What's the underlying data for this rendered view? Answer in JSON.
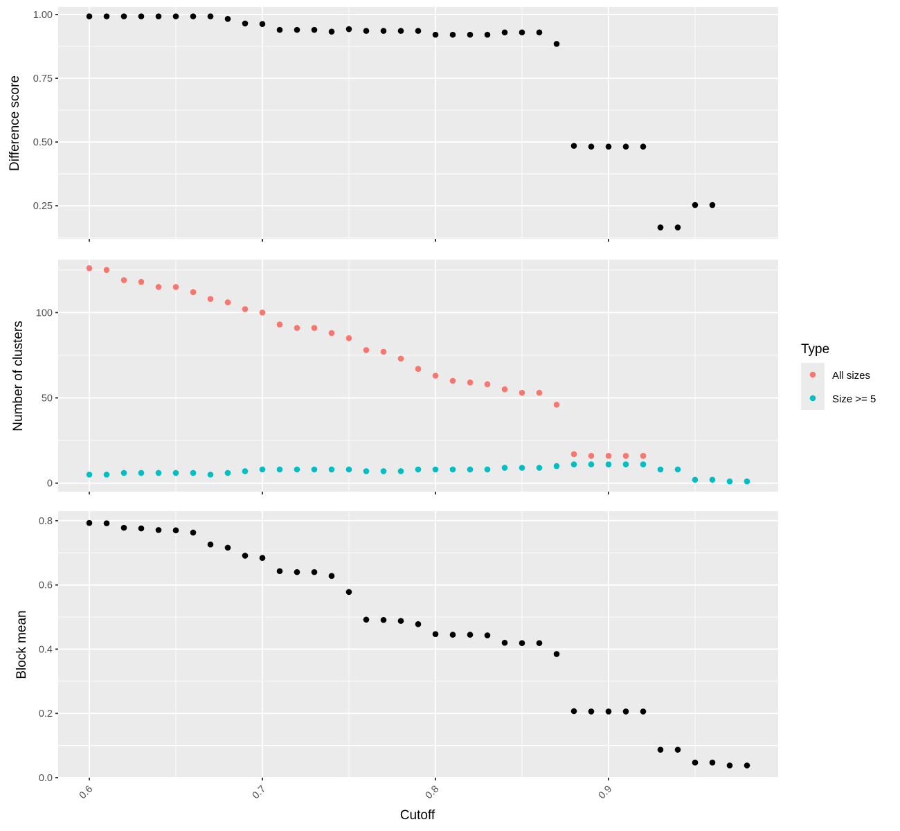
{
  "chart_data": [
    {
      "type": "scatter",
      "panel": "top",
      "ylabel": "Difference score",
      "xlim": [
        0.582,
        0.998
      ],
      "ylim": [
        0.12,
        1.03
      ],
      "y_ticks": [
        0.25,
        0.5,
        0.75,
        1.0
      ],
      "y_tick_labels": [
        "0.25",
        "0.50",
        "0.75",
        "1.00"
      ],
      "grid": true,
      "series": [
        {
          "color": "#000000",
          "x": [
            0.6,
            0.61,
            0.62,
            0.63,
            0.64,
            0.65,
            0.66,
            0.67,
            0.68,
            0.69,
            0.7,
            0.71,
            0.72,
            0.73,
            0.74,
            0.75,
            0.76,
            0.77,
            0.78,
            0.79,
            0.8,
            0.81,
            0.82,
            0.83,
            0.84,
            0.85,
            0.86,
            0.87,
            0.88,
            0.89,
            0.9,
            0.91,
            0.92,
            0.93,
            0.94,
            0.95,
            0.96
          ],
          "y": [
            0.993,
            0.993,
            0.993,
            0.993,
            0.993,
            0.993,
            0.993,
            0.993,
            0.983,
            0.965,
            0.963,
            0.94,
            0.94,
            0.94,
            0.933,
            0.943,
            0.936,
            0.936,
            0.936,
            0.936,
            0.921,
            0.921,
            0.921,
            0.921,
            0.93,
            0.93,
            0.93,
            0.885,
            0.485,
            0.482,
            0.482,
            0.482,
            0.482,
            0.165,
            0.165,
            0.253,
            0.253
          ]
        }
      ]
    },
    {
      "type": "scatter",
      "panel": "middle",
      "ylabel": "Number of clusters",
      "xlim": [
        0.582,
        0.998
      ],
      "ylim": [
        -5,
        131
      ],
      "y_ticks": [
        0,
        50,
        100
      ],
      "y_tick_labels": [
        "0",
        "50",
        "100"
      ],
      "grid": true,
      "legend": {
        "title": "Type",
        "position": "right",
        "entries": [
          {
            "label": "All sizes",
            "color": "#F8766D"
          },
          {
            "label": "Size >= 5",
            "color": "#00BFC4"
          }
        ]
      },
      "series": [
        {
          "name": "All sizes",
          "color": "#F8766D",
          "x": [
            0.6,
            0.61,
            0.62,
            0.63,
            0.64,
            0.65,
            0.66,
            0.67,
            0.68,
            0.69,
            0.7,
            0.71,
            0.72,
            0.73,
            0.74,
            0.75,
            0.76,
            0.77,
            0.78,
            0.79,
            0.8,
            0.81,
            0.82,
            0.83,
            0.84,
            0.85,
            0.86,
            0.87,
            0.88,
            0.89,
            0.9,
            0.91,
            0.92
          ],
          "y": [
            126,
            125,
            119,
            118,
            115,
            115,
            112,
            108,
            106,
            102,
            100,
            93,
            91,
            91,
            88,
            85,
            78,
            77,
            73,
            67,
            63,
            60,
            59,
            58,
            55,
            53,
            53,
            46,
            17,
            16,
            16,
            16,
            16
          ]
        },
        {
          "name": "Size >= 5",
          "color": "#00BFC4",
          "x": [
            0.6,
            0.61,
            0.62,
            0.63,
            0.64,
            0.65,
            0.66,
            0.67,
            0.68,
            0.69,
            0.7,
            0.71,
            0.72,
            0.73,
            0.74,
            0.75,
            0.76,
            0.77,
            0.78,
            0.79,
            0.8,
            0.81,
            0.82,
            0.83,
            0.84,
            0.85,
            0.86,
            0.87,
            0.88,
            0.89,
            0.9,
            0.91,
            0.92,
            0.93,
            0.94,
            0.95,
            0.96,
            0.97,
            0.98
          ],
          "y": [
            5,
            5,
            6,
            6,
            6,
            6,
            6,
            5,
            6,
            7,
            8,
            8,
            8,
            8,
            8,
            8,
            7,
            7,
            7,
            8,
            8,
            8,
            8,
            8,
            9,
            9,
            9,
            10,
            11,
            11,
            11,
            11,
            11,
            8,
            8,
            2,
            2,
            1,
            1
          ]
        }
      ]
    },
    {
      "type": "scatter",
      "panel": "bottom",
      "ylabel": "Block mean",
      "xlabel": "Cutoff",
      "xlim": [
        0.582,
        0.998
      ],
      "ylim": [
        0,
        0.83
      ],
      "x_ticks": [
        0.6,
        0.7,
        0.8,
        0.9
      ],
      "x_tick_labels": [
        "0.6",
        "0.7",
        "0.8",
        "0.9"
      ],
      "y_ticks": [
        0.0,
        0.2,
        0.4,
        0.6,
        0.8
      ],
      "y_tick_labels": [
        "0.0",
        "0.2",
        "0.4",
        "0.6",
        "0.8"
      ],
      "grid": true,
      "series": [
        {
          "color": "#000000",
          "x": [
            0.6,
            0.61,
            0.62,
            0.63,
            0.64,
            0.65,
            0.66,
            0.67,
            0.68,
            0.69,
            0.7,
            0.71,
            0.72,
            0.73,
            0.74,
            0.75,
            0.76,
            0.77,
            0.78,
            0.79,
            0.8,
            0.81,
            0.82,
            0.83,
            0.84,
            0.85,
            0.86,
            0.87,
            0.88,
            0.89,
            0.9,
            0.91,
            0.92,
            0.93,
            0.94,
            0.95,
            0.96,
            0.97,
            0.98
          ],
          "y": [
            0.793,
            0.792,
            0.778,
            0.776,
            0.771,
            0.77,
            0.763,
            0.726,
            0.716,
            0.691,
            0.684,
            0.643,
            0.64,
            0.64,
            0.628,
            0.578,
            0.492,
            0.491,
            0.488,
            0.478,
            0.447,
            0.445,
            0.445,
            0.443,
            0.42,
            0.419,
            0.419,
            0.385,
            0.207,
            0.206,
            0.206,
            0.206,
            0.206,
            0.087,
            0.087,
            0.047,
            0.047,
            0.038,
            0.038
          ]
        }
      ]
    }
  ]
}
